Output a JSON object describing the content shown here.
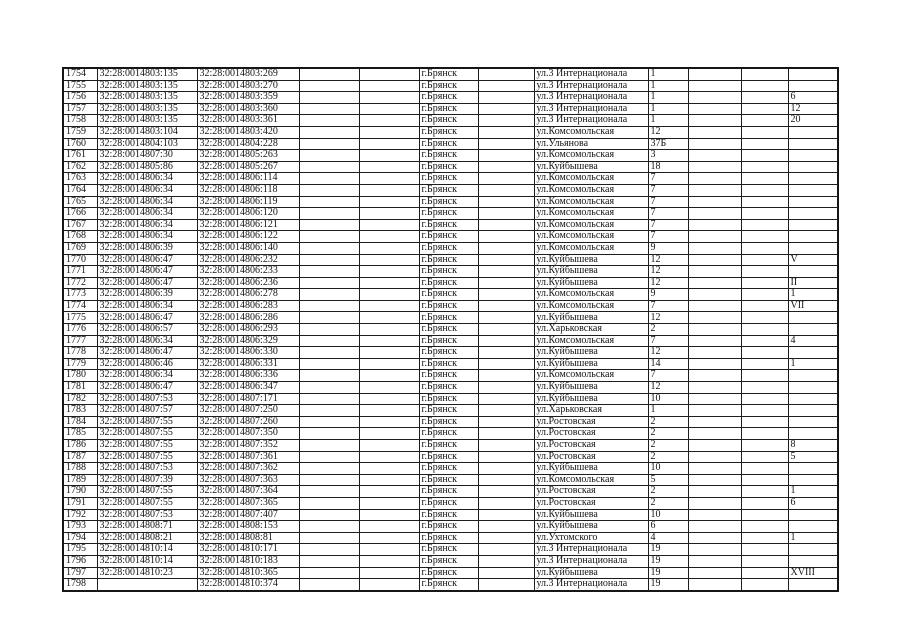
{
  "table": {
    "columns": [
      "row-number",
      "cadastral-number-1",
      "cadastral-number-2",
      "empty-1",
      "empty-2",
      "city",
      "empty-3",
      "street",
      "house-number",
      "empty-4",
      "empty-5",
      "note"
    ],
    "rows": [
      [
        "1754",
        "32:28:0014803:135",
        "32:28:0014803:269",
        "г.Брянск",
        "ул.3 Интернационала",
        "1",
        ""
      ],
      [
        "1755",
        "32:28:0014803:135",
        "32:28:0014803:270",
        "г.Брянск",
        "ул.3 Интернационала",
        "1",
        ""
      ],
      [
        "1756",
        "32:28:0014803:135",
        "32:28:0014803:359",
        "г.Брянск",
        "ул.3 Интернационала",
        "1",
        "6"
      ],
      [
        "1757",
        "32:28:0014803:135",
        "32:28:0014803:360",
        "г.Брянск",
        "ул.3 Интернационала",
        "1",
        "12"
      ],
      [
        "1758",
        "32:28:0014803:135",
        "32:28:0014803:361",
        "г.Брянск",
        "ул.3 Интернационала",
        "1",
        "20"
      ],
      [
        "1759",
        "32:28:0014803:104",
        "32:28:0014803:420",
        "г.Брянск",
        "ул.Комсомольская",
        "12",
        ""
      ],
      [
        "1760",
        "32:28:0014804:103",
        "32:28:0014804:228",
        "г.Брянск",
        "ул.Ульянова",
        "37Б",
        ""
      ],
      [
        "1761",
        "32:28:0014807:30",
        "32:28:0014805:263",
        "г.Брянск",
        "ул.Комсомольская",
        "3",
        ""
      ],
      [
        "1762",
        "32:28:0014805:86",
        "32:28:0014805:267",
        "г.Брянск",
        "ул.Куйбышева",
        "18",
        ""
      ],
      [
        "1763",
        "32:28:0014806:34",
        "32:28:0014806:114",
        "г.Брянск",
        "ул.Комсомольская",
        "7",
        ""
      ],
      [
        "1764",
        "32:28:0014806:34",
        "32:28:0014806:118",
        "г.Брянск",
        "ул.Комсомольская",
        "7",
        ""
      ],
      [
        "1765",
        "32:28:0014806:34",
        "32:28:0014806:119",
        "г.Брянск",
        "ул.Комсомольская",
        "7",
        ""
      ],
      [
        "1766",
        "32:28:0014806:34",
        "32:28:0014806:120",
        "г.Брянск",
        "ул.Комсомольская",
        "7",
        ""
      ],
      [
        "1767",
        "32:28:0014806:34",
        "32:28:0014806:121",
        "г.Брянск",
        "ул.Комсомольская",
        "7",
        ""
      ],
      [
        "1768",
        "32:28:0014806:34",
        "32:28:0014806:122",
        "г.Брянск",
        "ул.Комсомольская",
        "7",
        ""
      ],
      [
        "1769",
        "32:28:0014806:39",
        "32:28:0014806:140",
        "г.Брянск",
        "ул.Комсомольская",
        "9",
        ""
      ],
      [
        "1770",
        "32:28:0014806:47",
        "32:28:0014806:232",
        "г.Брянск",
        "ул.Куйбышева",
        "12",
        "V"
      ],
      [
        "1771",
        "32:28:0014806:47",
        "32:28:0014806:233",
        "г.Брянск",
        "ул.Куйбышева",
        "12",
        ""
      ],
      [
        "1772",
        "32:28:0014806:47",
        "32:28:0014806:236",
        "г.Брянск",
        "ул.Куйбышева",
        "12",
        "II"
      ],
      [
        "1773",
        "32:28:0014806:39",
        "32:28:0014806:278",
        "г.Брянск",
        "ул.Комсомольская",
        "9",
        "1"
      ],
      [
        "1774",
        "32:28:0014806:34",
        "32:28:0014806:283",
        "г.Брянск",
        "ул.Комсомольская",
        "7",
        "VII"
      ],
      [
        "1775",
        "32:28:0014806:47",
        "32:28:0014806:286",
        "г.Брянск",
        "ул.Куйбышева",
        "12",
        ""
      ],
      [
        "1776",
        "32:28:0014806:57",
        "32:28:0014806:293",
        "г.Брянск",
        "ул.Харьковская",
        "2",
        ""
      ],
      [
        "1777",
        "32:28:0014806:34",
        "32:28:0014806:329",
        "г.Брянск",
        "ул.Комсомольская",
        "7",
        "4"
      ],
      [
        "1778",
        "32:28:0014806:47",
        "32:28:0014806:330",
        "г.Брянск",
        "ул.Куйбышева",
        "12",
        ""
      ],
      [
        "1779",
        "32:28:0014806:46",
        "32:28:0014806:331",
        "г.Брянск",
        "ул.Куйбышева",
        "14",
        "1"
      ],
      [
        "1780",
        "32:28:0014806:34",
        "32:28:0014806:336",
        "г.Брянск",
        "ул.Комсомольская",
        "7",
        ""
      ],
      [
        "1781",
        "32:28:0014806:47",
        "32:28:0014806:347",
        "г.Брянск",
        "ул.Куйбышева",
        "12",
        ""
      ],
      [
        "1782",
        "32:28:0014807:53",
        "32:28:0014807:171",
        "г.Брянск",
        "ул.Куйбышева",
        "10",
        ""
      ],
      [
        "1783",
        "32:28:0014807:57",
        "32:28:0014807:250",
        "г.Брянск",
        "ул.Харьковская",
        "1",
        ""
      ],
      [
        "1784",
        "32:28:0014807:55",
        "32:28:0014807:260",
        "г.Брянск",
        "ул.Ростовская",
        "2",
        ""
      ],
      [
        "1785",
        "32:28:0014807:55",
        "32:28:0014807:350",
        "г.Брянск",
        "ул.Ростовская",
        "2",
        ""
      ],
      [
        "1786",
        "32:28:0014807:55",
        "32:28:0014807:352",
        "г.Брянск",
        "ул.Ростовская",
        "2",
        "8"
      ],
      [
        "1787",
        "32:28:0014807:55",
        "32:28:0014807:361",
        "г.Брянск",
        "ул.Ростовская",
        "2",
        "5"
      ],
      [
        "1788",
        "32:28:0014807:53",
        "32:28:0014807:362",
        "г.Брянск",
        "ул.Куйбышева",
        "10",
        ""
      ],
      [
        "1789",
        "32:28:0014807:39",
        "32:28:0014807:363",
        "г.Брянск",
        "ул.Комсомольская",
        "5",
        ""
      ],
      [
        "1790",
        "32:28:0014807:55",
        "32:28:0014807:364",
        "г.Брянск",
        "ул.Ростовская",
        "2",
        "1"
      ],
      [
        "1791",
        "32:28:0014807:55",
        "32:28:0014807:365",
        "г.Брянск",
        "ул.Ростовская",
        "2",
        "6"
      ],
      [
        "1792",
        "32:28:0014807:53",
        "32:28:0014807:407",
        "г.Брянск",
        "ул.Куйбышева",
        "10",
        ""
      ],
      [
        "1793",
        "32:28:0014808:71",
        "32:28:0014808:153",
        "г.Брянск",
        "ул.Куйбышева",
        "6",
        ""
      ],
      [
        "1794",
        "32:28:0014808:21",
        "32:28:0014808:81",
        "г.Брянск",
        "ул.Ухтомского",
        "4",
        "1"
      ],
      [
        "1795",
        "32:28:0014810:14",
        "32:28:0014810:171",
        "г.Брянск",
        "ул.3 Интернационала",
        "19",
        ""
      ],
      [
        "1796",
        "32:28:0014810:14",
        "32:28:0014810:183",
        "г.Брянск",
        "ул.3 Интернационала",
        "19",
        ""
      ],
      [
        "1797",
        "32:28:0014810:23",
        "32:28:0014810:365",
        "г.Брянск",
        "ул.Куйбышева",
        "19",
        "XVIII"
      ],
      [
        "1798",
        "",
        "32:28:0014810:374",
        "г.Брянск",
        "ул.3 Интернационала",
        "19",
        ""
      ]
    ]
  }
}
